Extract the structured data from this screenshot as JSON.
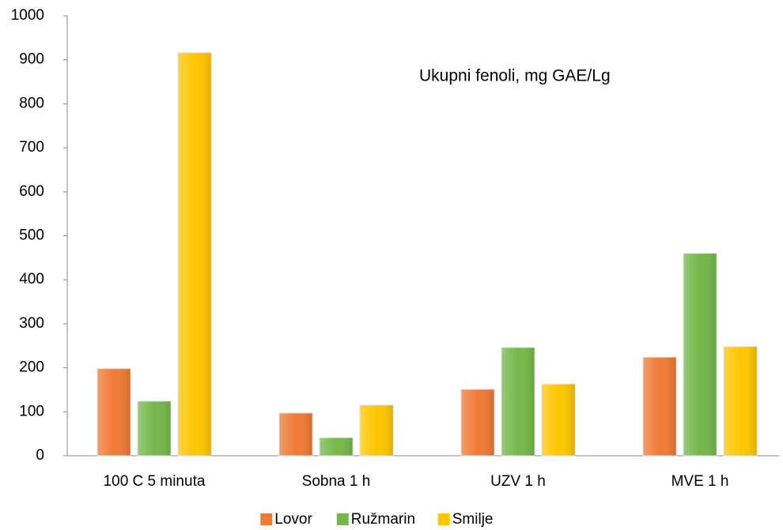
{
  "chart_data": {
    "type": "bar",
    "annotation": "Ukupni fenoli, mg GAE/Lg",
    "categories": [
      "100 C 5 minuta",
      "Sobna 1 h",
      "UZV 1 h",
      "MVE 1 h"
    ],
    "series": [
      {
        "name": "Lovor",
        "color": "#f07a35",
        "values": [
          198,
          97,
          151,
          224
        ]
      },
      {
        "name": "Ružmarin",
        "color": "#74b84a",
        "values": [
          124,
          41,
          246,
          460
        ]
      },
      {
        "name": "Smilje",
        "color": "#ffc600",
        "values": [
          916,
          115,
          163,
          248
        ]
      }
    ],
    "ylim": [
      0,
      1000
    ],
    "yticks": [
      0,
      100,
      200,
      300,
      400,
      500,
      600,
      700,
      800,
      900,
      1000
    ],
    "grid": false,
    "legend": "bottom"
  }
}
